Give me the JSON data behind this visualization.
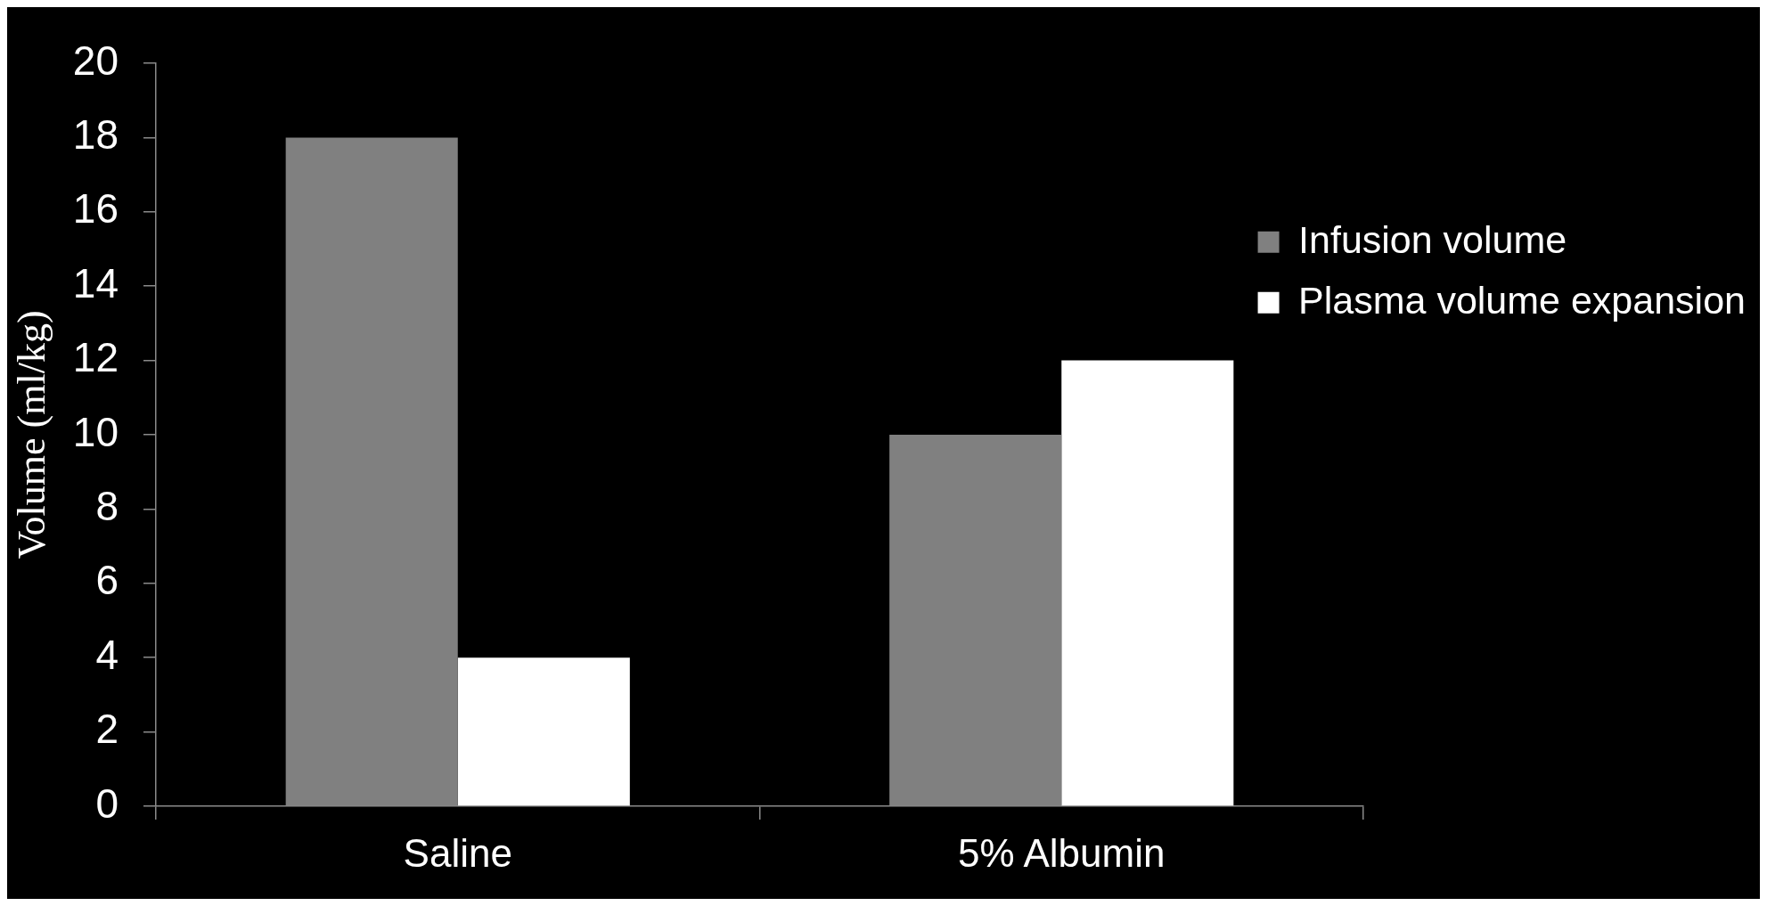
{
  "chart_data": {
    "type": "bar",
    "categories": [
      "Saline",
      "5% Albumin"
    ],
    "series": [
      {
        "name": "Infusion volume",
        "color": "#808080",
        "values": [
          18,
          10
        ]
      },
      {
        "name": "Plasma volume expansion",
        "color": "#ffffff",
        "values": [
          4,
          12
        ]
      }
    ],
    "ylabel": "Volume (ml/kg)",
    "ylim": [
      0,
      20
    ],
    "yticks": [
      0,
      2,
      4,
      6,
      8,
      10,
      12,
      14,
      16,
      18,
      20
    ],
    "legend": "right"
  }
}
